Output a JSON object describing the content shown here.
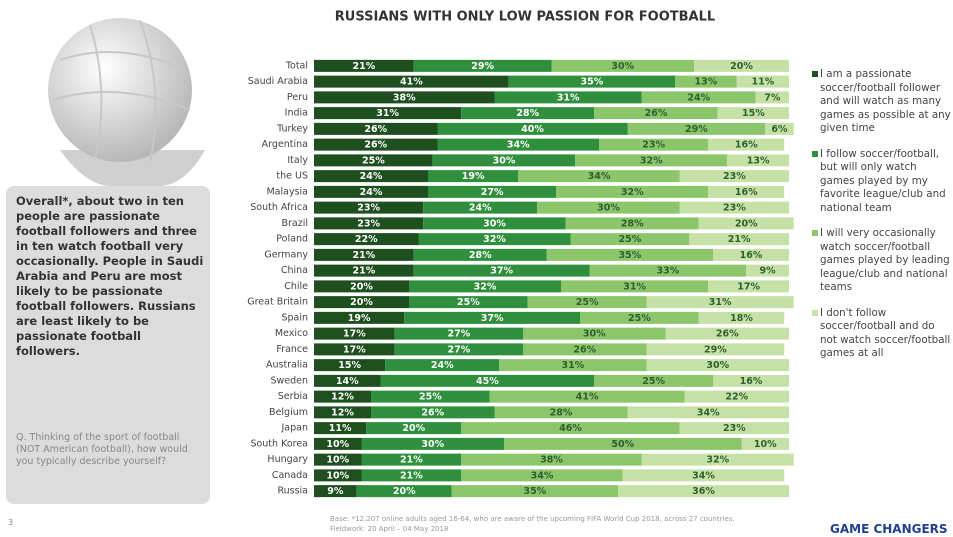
{
  "chart_data": {
    "type": "stacked-bar",
    "title": "RUSSIANS WITH ONLY LOW PASSION FOR FOOTBALL",
    "categories": [
      "Total",
      "Saudi Arabia",
      "Peru",
      "India",
      "Turkey",
      "Argentina",
      "Italy",
      "the US",
      "Malaysia",
      "South Africa",
      "Brazil",
      "Poland",
      "Germany",
      "China",
      "Chile",
      "Great Britain",
      "Spain",
      "Mexico",
      "France",
      "Australia",
      "Sweden",
      "Serbia",
      "Belgium",
      "Japan",
      "South Korea",
      "Hungary",
      "Canada",
      "Russia"
    ],
    "series": [
      {
        "name": "I am a passionate soccer/football follower and will watch as many games as possible at any given time",
        "color": "#1f4f1f",
        "values": [
          21,
          41,
          38,
          31,
          26,
          26,
          25,
          24,
          24,
          23,
          23,
          22,
          21,
          21,
          20,
          20,
          19,
          17,
          17,
          15,
          14,
          12,
          12,
          11,
          10,
          10,
          10,
          9
        ],
        "value_labels": [
          "21%",
          "41%",
          "38%",
          "31%",
          "26%",
          "26%",
          "25%",
          "24%",
          "24%",
          "23%",
          "23%",
          "22%",
          "21%",
          "21%",
          "20%",
          "20%",
          "19%",
          "17%",
          "17%",
          "15%",
          "14%",
          "12%",
          "12%",
          "11%",
          "10%",
          "10%",
          "10%",
          "9%"
        ]
      },
      {
        "name": "I follow soccer/football, but will only watch games played by my favorite league/club and national team",
        "color": "#2f8f3c",
        "values": [
          29,
          35,
          31,
          28,
          40,
          34,
          30,
          19,
          27,
          24,
          30,
          32,
          28,
          37,
          32,
          25,
          37,
          27,
          27,
          24,
          45,
          25,
          26,
          20,
          30,
          21,
          21,
          20
        ],
        "value_labels": [
          "29%",
          "35%",
          "31%",
          "28%",
          "40%",
          "34%",
          "30%",
          "19%",
          "27%",
          "24%",
          "30%",
          "32%",
          "28%",
          "37%",
          "32%",
          "25%",
          "37%",
          "27%",
          "27%",
          "24%",
          "45%",
          "25%",
          "26%",
          "20%",
          "30%",
          "21%",
          "21%",
          "20%"
        ]
      },
      {
        "name": "I will very occasionally watch soccer/football games played by leading league/club and national teams",
        "color": "#8cc66b",
        "values": [
          30,
          13,
          24,
          26,
          29,
          23,
          32,
          34,
          32,
          30,
          28,
          25,
          35,
          33,
          31,
          25,
          25,
          30,
          26,
          31,
          25,
          41,
          28,
          46,
          50,
          38,
          34,
          35
        ],
        "value_labels": [
          "30%",
          "13%",
          "24%",
          "26%",
          "29%",
          "23%",
          "32%",
          "34%",
          "32%",
          "30%",
          "28%",
          "25%",
          "35%",
          "33%",
          "31%",
          "25%",
          "25%",
          "30%",
          "26%",
          "31%",
          "25%",
          "41%",
          "28%",
          "46%",
          "50%",
          "38%",
          "34%",
          "35%"
        ]
      },
      {
        "name": "I don't follow soccer/football and do not watch soccer/football games at all",
        "color": "#c6e1a6",
        "values": [
          20,
          11,
          7,
          15,
          6,
          16,
          13,
          23,
          16,
          23,
          20,
          21,
          16,
          9,
          17,
          31,
          18,
          26,
          29,
          30,
          16,
          22,
          34,
          23,
          10,
          32,
          34,
          36
        ],
        "value_labels": [
          "20%",
          "11%",
          "7%",
          "15%",
          "6%",
          "16%",
          "13%",
          "23%",
          "16%",
          "23%",
          "20%",
          "21%",
          "16%",
          "9%",
          "17%",
          "31%",
          "18%",
          "26%",
          "29%",
          "30%",
          "16%",
          "22%",
          "34%",
          "23%",
          "10%",
          "32%",
          "34%",
          "36%"
        ]
      }
    ]
  },
  "sidebar": {
    "summary": "Overall*, about two in ten people are passionate football followers and three in ten watch football very occasionally. People in Saudi Arabia and Peru are most likely to be passionate football followers. Russians are least likely to be passionate football followers.",
    "question": "Q. Thinking of the sport of football (NOT American football), how would you typically describe yourself?"
  },
  "footer": {
    "page_number": "3",
    "base": "Base: *12,207 online adults aged 16-64, who are aware of the upcoming FIFA World Cup 2018, across 27 countries. Fieldwork: 20 April – 04 May 2018",
    "brand": "GAME CHANGERS"
  }
}
